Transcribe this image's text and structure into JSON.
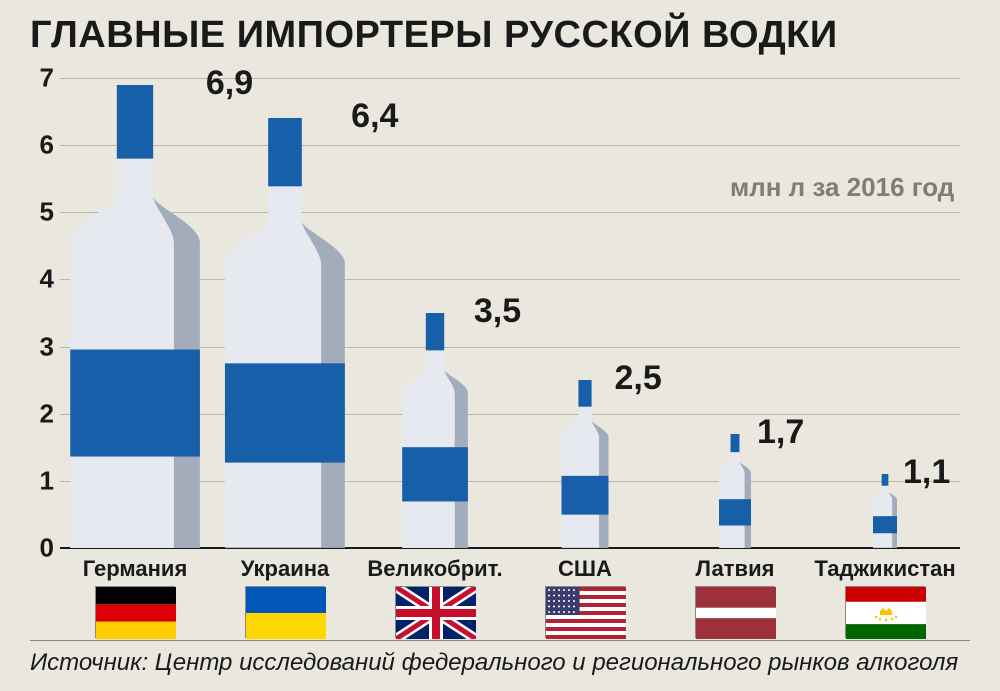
{
  "title": "ГЛАВНЫЕ ИМПОРТЕРЫ РУССКОЙ ВОДКИ",
  "subtitle": "млн л за 2016 год",
  "source": "Источник: Центр исследований федерального и регионального рынков алкоголя",
  "chart": {
    "type": "bar",
    "ylim": [
      0,
      7
    ],
    "ytick_step": 1,
    "background_color": "#e9e7de",
    "grid_color": "#b9b7ae",
    "axis_color": "#1a1a1a",
    "title_fontsize": 38,
    "label_fontsize": 22,
    "value_fontsize": 34,
    "bottle_body_color": "#e6eaf0",
    "bottle_shadow_color": "#9aa5b5",
    "bottle_accent_color": "#175fa8",
    "categories": [
      {
        "name": "Германия",
        "value": 6.9,
        "label": "6,9",
        "flag": "de"
      },
      {
        "name": "Украина",
        "value": 6.4,
        "label": "6,4",
        "flag": "ua"
      },
      {
        "name": "Великобрит.",
        "value": 3.5,
        "label": "3,5",
        "flag": "uk"
      },
      {
        "name": "США",
        "value": 2.5,
        "label": "2,5",
        "flag": "us"
      },
      {
        "name": "Латвия",
        "value": 1.7,
        "label": "1,7",
        "flag": "lv"
      },
      {
        "name": "Таджикистан",
        "value": 1.1,
        "label": "1,1",
        "flag": "tj"
      }
    ]
  },
  "flags": {
    "de": {
      "stripes_h": [
        "#000000",
        "#dd0000",
        "#ffce00"
      ]
    },
    "ua": {
      "stripes_h": [
        "#0057b7",
        "#ffd700"
      ]
    },
    "lv": {
      "stripes_h_weighted": [
        [
          "#9e3039",
          2
        ],
        [
          "#ffffff",
          1
        ],
        [
          "#9e3039",
          2
        ]
      ]
    },
    "tj": {
      "stripes_h_weighted": [
        [
          "#cc0000",
          2
        ],
        [
          "#ffffff",
          3
        ],
        [
          "#006600",
          2
        ]
      ],
      "emblem": "crown"
    },
    "uk": {
      "type": "uk"
    },
    "us": {
      "type": "us"
    }
  }
}
